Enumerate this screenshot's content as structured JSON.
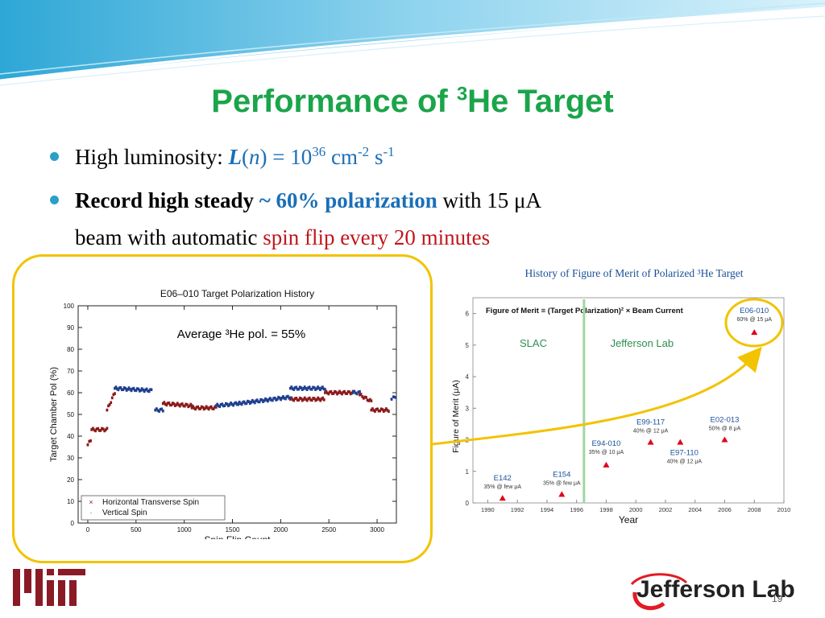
{
  "slide": {
    "title_prefix": "Performance of ",
    "title_sup": "3",
    "title_suffix": "He Target",
    "page_number": "19"
  },
  "bullets": {
    "b1": {
      "lead": "High luminosity: ",
      "L": "L",
      "open": "(",
      "n": "n",
      "close": ")",
      "eq": " = 10",
      "exp36": "36",
      "cm": " cm",
      "exp_m2": "-2",
      "s": " s",
      "exp_m1": "-1"
    },
    "b2": {
      "bold": "Record high steady ",
      "pol": "~ 60% polarization",
      "with": " with 15 μA",
      "line2_a": "beam with automatic ",
      "line2_b": "spin flip every 20 minutes"
    }
  },
  "left_chart": {
    "chart_data": {
      "type": "scatter",
      "title": "E06–010 Target Polarization History",
      "xlabel": "Spin Flip Count",
      "ylabel": "Target Chamber Pol (%)",
      "xlim": [
        -100,
        3200
      ],
      "ylim": [
        0,
        100
      ],
      "xticks": [
        0,
        500,
        1000,
        1500,
        2000,
        2500,
        3000
      ],
      "yticks": [
        0,
        10,
        20,
        30,
        40,
        50,
        60,
        70,
        80,
        90,
        100
      ],
      "annotation": "Average ³He pol. = 55%",
      "legend": {
        "placement": "bottom-left",
        "entries": [
          "Horizontal Transverse Spin",
          "Vertical Spin"
        ]
      },
      "series": [
        {
          "name": "Horizontal Transverse Spin",
          "color": "#8b1a1a",
          "segments": [
            {
              "x0": 0,
              "x1": 30,
              "y0": 36,
              "y1": 38
            },
            {
              "x0": 40,
              "x1": 200,
              "y0": 43,
              "y1": 43
            },
            {
              "x0": 200,
              "x1": 280,
              "y0": 52,
              "y1": 60
            },
            {
              "x0": 780,
              "x1": 1080,
              "y0": 55,
              "y1": 54
            },
            {
              "x0": 1080,
              "x1": 1330,
              "y0": 53,
              "y1": 53
            },
            {
              "x0": 2100,
              "x1": 2450,
              "y0": 57,
              "y1": 57
            },
            {
              "x0": 2460,
              "x1": 2750,
              "y0": 60,
              "y1": 60
            },
            {
              "x0": 2820,
              "x1": 2940,
              "y0": 59,
              "y1": 56
            },
            {
              "x0": 2940,
              "x1": 3120,
              "y0": 52,
              "y1": 52
            }
          ]
        },
        {
          "name": "Vertical Spin",
          "color": "#1f3f8f",
          "segments": [
            {
              "x0": 280,
              "x1": 660,
              "y0": 62,
              "y1": 61
            },
            {
              "x0": 700,
              "x1": 780,
              "y0": 52,
              "y1": 52
            },
            {
              "x0": 1330,
              "x1": 1560,
              "y0": 54,
              "y1": 55
            },
            {
              "x0": 1560,
              "x1": 2100,
              "y0": 55,
              "y1": 58
            },
            {
              "x0": 2100,
              "x1": 2460,
              "y0": 62,
              "y1": 62
            },
            {
              "x0": 2750,
              "x1": 2820,
              "y0": 60,
              "y1": 60
            },
            {
              "x0": 3150,
              "x1": 3190,
              "y0": 57,
              "y1": 58
            }
          ]
        }
      ]
    }
  },
  "right_chart": {
    "chart_data": {
      "type": "scatter",
      "title": "History of Figure of Merit of Polarized ³He Target",
      "inner_title": "Figure of Merit ≡ (Target Polarization)² × Beam Current",
      "xlabel": "Year",
      "ylabel": "Figure of Merit (μA)",
      "xlim": [
        1989,
        2010
      ],
      "ylim": [
        0,
        6.5
      ],
      "xticks": [
        1990,
        1992,
        1994,
        1996,
        1998,
        2000,
        2002,
        2004,
        2006,
        2008,
        2010
      ],
      "yticks": [
        0,
        1,
        2,
        3,
        4,
        5,
        6
      ],
      "divider_year": 1996.5,
      "region_labels": [
        "SLAC",
        "Jefferson Lab"
      ],
      "points": [
        {
          "label": "E142",
          "sub": "35% @ few μA",
          "x": 1991,
          "y": 0.15
        },
        {
          "label": "E154",
          "sub": "35% @ few μA",
          "x": 1995,
          "y": 0.27
        },
        {
          "label": "E94-010",
          "sub": "35% @ 10 μA",
          "x": 1998,
          "y": 1.2
        },
        {
          "label": "E99-117",
          "sub": "40% @ 12 μA",
          "x": 2001,
          "y": 1.92
        },
        {
          "label": "E97-110",
          "sub": "40% @ 12 μA",
          "x": 2003,
          "y": 1.92
        },
        {
          "label": "E02-013",
          "sub": "50% @ 8 μA",
          "x": 2006,
          "y": 2.0
        },
        {
          "label": "E06-010",
          "sub": "60% @ 15 μA",
          "x": 2008,
          "y": 5.4
        }
      ]
    }
  },
  "logos": {
    "mit": "MIT",
    "jlab": "Jefferson Lab"
  },
  "colors": {
    "title_green": "#1aa54a",
    "accent_blue": "#1a6fb7",
    "accent_red": "#c0171c",
    "frame_yellow": "#f2c300",
    "marker_red": "#e0001a"
  }
}
